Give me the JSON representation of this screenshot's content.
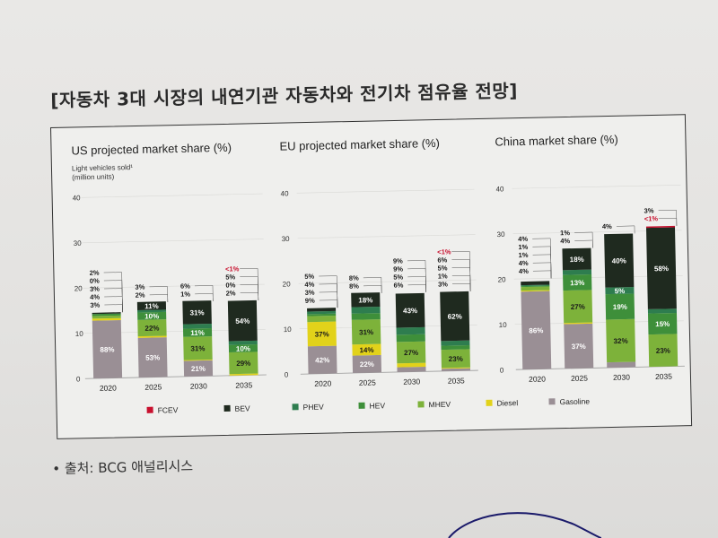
{
  "page": {
    "title": "[자동차 3대 시장의 내연기관 자동차와 전기차 점유율 전망]",
    "source": "• 출처: BCG 애널리시스"
  },
  "colors": {
    "FCEV": "#c8102e",
    "BEV": "#1f2a1f",
    "PHEV": "#2e7d4f",
    "HEV": "#3e8f3a",
    "MHEV": "#7db23a",
    "Diesel": "#e2d21a",
    "Gasoline": "#9a8f95"
  },
  "legend": [
    "FCEV",
    "BEV",
    "PHEV",
    "HEV",
    "MHEV",
    "Diesel",
    "Gasoline"
  ],
  "chart_data": [
    {
      "type": "bar",
      "title": "US projected market share (%)",
      "ylabel": "Light vehicles sold¹ (million units)",
      "ylim": [
        0,
        40
      ],
      "yticks": [
        0,
        10,
        20,
        30,
        40
      ],
      "categories": [
        "2020",
        "2025",
        "2030",
        "2035"
      ],
      "totals": [
        14.5,
        16.5,
        16.5,
        16.5
      ],
      "stacks": [
        [
          {
            "s": "Gasoline",
            "v": 88
          },
          {
            "s": "Diesel",
            "v": 3
          },
          {
            "s": "MHEV",
            "v": 4
          },
          {
            "s": "HEV",
            "v": 3
          },
          {
            "s": "PHEV",
            "v": 0
          },
          {
            "s": "BEV",
            "v": 2
          },
          {
            "s": "FCEV",
            "v": 0
          }
        ],
        [
          {
            "s": "Gasoline",
            "v": 53
          },
          {
            "s": "Diesel",
            "v": 2
          },
          {
            "s": "MHEV",
            "v": 22
          },
          {
            "s": "HEV",
            "v": 10
          },
          {
            "s": "PHEV",
            "v": 3
          },
          {
            "s": "BEV",
            "v": 11
          },
          {
            "s": "FCEV",
            "v": 0
          }
        ],
        [
          {
            "s": "Gasoline",
            "v": 21
          },
          {
            "s": "Diesel",
            "v": 1
          },
          {
            "s": "MHEV",
            "v": 31
          },
          {
            "s": "HEV",
            "v": 11
          },
          {
            "s": "PHEV",
            "v": 6
          },
          {
            "s": "BEV",
            "v": 31
          },
          {
            "s": "FCEV",
            "v": 0
          }
        ],
        [
          {
            "s": "Gasoline",
            "v": 0
          },
          {
            "s": "Diesel",
            "v": 2
          },
          {
            "s": "MHEV",
            "v": 29
          },
          {
            "s": "HEV",
            "v": 10
          },
          {
            "s": "PHEV",
            "v": 5
          },
          {
            "s": "BEV",
            "v": 54
          },
          {
            "s": "FCEV",
            "v": 0
          }
        ]
      ],
      "inside_labels": [
        [
          {
            "s": "Gasoline",
            "t": "88%"
          }
        ],
        [
          {
            "s": "Gasoline",
            "t": "53%"
          },
          {
            "s": "MHEV",
            "t": "22%"
          },
          {
            "s": "HEV",
            "t": "10%"
          },
          {
            "s": "BEV",
            "t": "11%"
          }
        ],
        [
          {
            "s": "Gasoline",
            "t": "21%"
          },
          {
            "s": "MHEV",
            "t": "31%"
          },
          {
            "s": "HEV",
            "t": "11%"
          },
          {
            "s": "BEV",
            "t": "31%"
          }
        ],
        [
          {
            "s": "MHEV",
            "t": "29%"
          },
          {
            "s": "HEV",
            "t": "10%"
          },
          {
            "s": "BEV",
            "t": "54%"
          }
        ]
      ],
      "callouts": [
        [
          "2%",
          "0%",
          "3%",
          "4%",
          "3%"
        ],
        [
          "3%",
          "2%"
        ],
        [
          "6%",
          "1%"
        ],
        [
          "<1%",
          "5%",
          "0%",
          "2%"
        ]
      ]
    },
    {
      "type": "bar",
      "title": "EU projected market share (%)",
      "ylim": [
        0,
        40
      ],
      "yticks": [
        0,
        10,
        20,
        30,
        40
      ],
      "categories": [
        "2020",
        "2025",
        "2030",
        "2035"
      ],
      "totals": [
        14.5,
        17.5,
        17.5,
        17.5
      ],
      "stacks": [
        [
          {
            "s": "Gasoline",
            "v": 42
          },
          {
            "s": "Diesel",
            "v": 37
          },
          {
            "s": "MHEV",
            "v": 9
          },
          {
            "s": "HEV",
            "v": 3
          },
          {
            "s": "PHEV",
            "v": 4
          },
          {
            "s": "BEV",
            "v": 5
          },
          {
            "s": "FCEV",
            "v": 0
          }
        ],
        [
          {
            "s": "Gasoline",
            "v": 22
          },
          {
            "s": "Diesel",
            "v": 14
          },
          {
            "s": "MHEV",
            "v": 31
          },
          {
            "s": "HEV",
            "v": 8
          },
          {
            "s": "PHEV",
            "v": 8
          },
          {
            "s": "BEV",
            "v": 18
          },
          {
            "s": "FCEV",
            "v": 0
          }
        ],
        [
          {
            "s": "Gasoline",
            "v": 6
          },
          {
            "s": "Diesel",
            "v": 5
          },
          {
            "s": "MHEV",
            "v": 27
          },
          {
            "s": "HEV",
            "v": 9
          },
          {
            "s": "PHEV",
            "v": 9
          },
          {
            "s": "BEV",
            "v": 43
          },
          {
            "s": "FCEV",
            "v": 0
          }
        ],
        [
          {
            "s": "Gasoline",
            "v": 3
          },
          {
            "s": "Diesel",
            "v": 1
          },
          {
            "s": "MHEV",
            "v": 23
          },
          {
            "s": "HEV",
            "v": 5
          },
          {
            "s": "PHEV",
            "v": 6
          },
          {
            "s": "BEV",
            "v": 62
          },
          {
            "s": "FCEV",
            "v": 0
          }
        ]
      ],
      "inside_labels": [
        [
          {
            "s": "Gasoline",
            "t": "42%"
          },
          {
            "s": "Diesel",
            "t": "37%"
          }
        ],
        [
          {
            "s": "Gasoline",
            "t": "22%"
          },
          {
            "s": "Diesel",
            "t": "14%"
          },
          {
            "s": "MHEV",
            "t": "31%"
          },
          {
            "s": "BEV",
            "t": "18%"
          }
        ],
        [
          {
            "s": "MHEV",
            "t": "27%"
          },
          {
            "s": "BEV",
            "t": "43%"
          }
        ],
        [
          {
            "s": "MHEV",
            "t": "23%"
          },
          {
            "s": "BEV",
            "t": "62%"
          }
        ]
      ],
      "callouts": [
        [
          "5%",
          "4%",
          "3%",
          "9%"
        ],
        [
          "8%",
          "8%"
        ],
        [
          "9%",
          "9%",
          "5%",
          "6%"
        ],
        [
          "<1%",
          "6%",
          "5%",
          "1%",
          "3%"
        ]
      ]
    },
    {
      "type": "bar",
      "title": "China market share (%)",
      "ylim": [
        0,
        40
      ],
      "yticks": [
        0,
        10,
        20,
        30,
        40
      ],
      "categories": [
        "2020",
        "2025",
        "2030",
        "2035"
      ],
      "totals": [
        20,
        26.5,
        29.5,
        31
      ],
      "stacks": [
        [
          {
            "s": "Gasoline",
            "v": 86
          },
          {
            "s": "Diesel",
            "v": 1
          },
          {
            "s": "MHEV",
            "v": 4
          },
          {
            "s": "HEV",
            "v": 1
          },
          {
            "s": "PHEV",
            "v": 1
          },
          {
            "s": "BEV",
            "v": 4
          },
          {
            "s": "FCEV",
            "v": 0
          }
        ],
        [
          {
            "s": "Gasoline",
            "v": 37
          },
          {
            "s": "Diesel",
            "v": 1
          },
          {
            "s": "MHEV",
            "v": 27
          },
          {
            "s": "HEV",
            "v": 13
          },
          {
            "s": "PHEV",
            "v": 4
          },
          {
            "s": "BEV",
            "v": 18
          },
          {
            "s": "FCEV",
            "v": 0
          }
        ],
        [
          {
            "s": "Gasoline",
            "v": 4
          },
          {
            "s": "Diesel",
            "v": 0
          },
          {
            "s": "MHEV",
            "v": 32
          },
          {
            "s": "HEV",
            "v": 19
          },
          {
            "s": "PHEV",
            "v": 5
          },
          {
            "s": "BEV",
            "v": 40
          },
          {
            "s": "FCEV",
            "v": 0
          }
        ],
        [
          {
            "s": "Gasoline",
            "v": 0
          },
          {
            "s": "Diesel",
            "v": 0
          },
          {
            "s": "MHEV",
            "v": 23
          },
          {
            "s": "HEV",
            "v": 15
          },
          {
            "s": "PHEV",
            "v": 3
          },
          {
            "s": "BEV",
            "v": 58
          },
          {
            "s": "FCEV",
            "v": 1
          }
        ]
      ],
      "inside_labels": [
        [
          {
            "s": "Gasoline",
            "t": "86%"
          }
        ],
        [
          {
            "s": "Gasoline",
            "t": "37%"
          },
          {
            "s": "MHEV",
            "t": "27%"
          },
          {
            "s": "HEV",
            "t": "13%"
          },
          {
            "s": "BEV",
            "t": "18%"
          }
        ],
        [
          {
            "s": "MHEV",
            "t": "32%"
          },
          {
            "s": "HEV",
            "t": "19%"
          },
          {
            "s": "PHEV",
            "t": "5%"
          },
          {
            "s": "BEV",
            "t": "40%"
          }
        ],
        [
          {
            "s": "MHEV",
            "t": "23%"
          },
          {
            "s": "HEV",
            "t": "15%"
          },
          {
            "s": "BEV",
            "t": "58%"
          }
        ]
      ],
      "callouts": [
        [
          "4%",
          "1%",
          "1%",
          "4%",
          "4%"
        ],
        [
          "1%",
          "4%"
        ],
        [
          "4%"
        ],
        [
          "3%",
          "<1%"
        ]
      ]
    }
  ]
}
